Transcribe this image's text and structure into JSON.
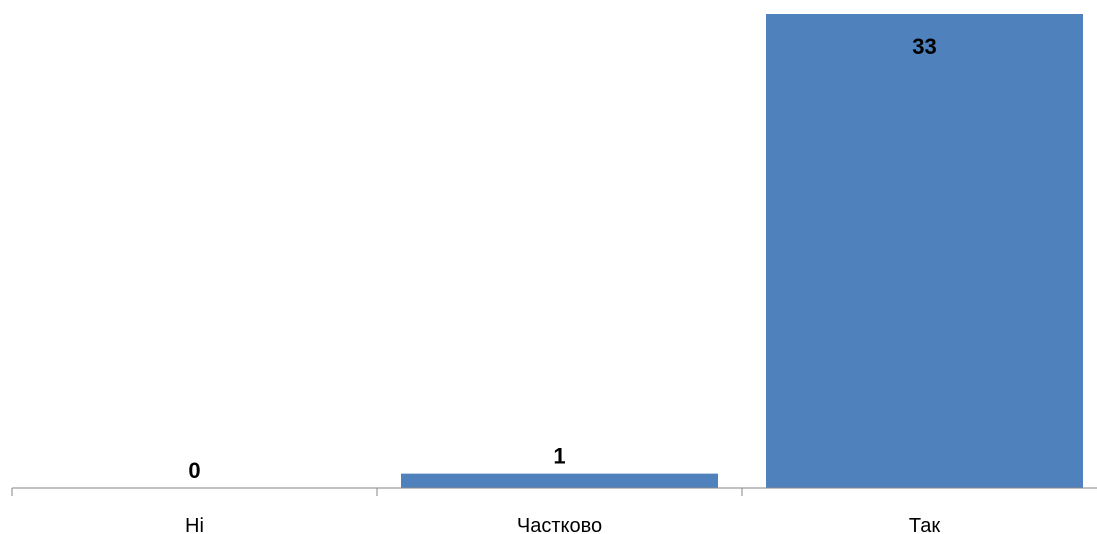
{
  "chart_data": {
    "type": "bar",
    "categories": [
      "Ні",
      "Частково",
      "Так"
    ],
    "values": [
      0,
      1,
      33
    ],
    "title": "",
    "xlabel": "",
    "ylabel": "",
    "ylim": [
      0,
      33
    ],
    "grid": false,
    "legend": "none",
    "bar_color": "#4F81BD",
    "axis_color": "#868686"
  }
}
